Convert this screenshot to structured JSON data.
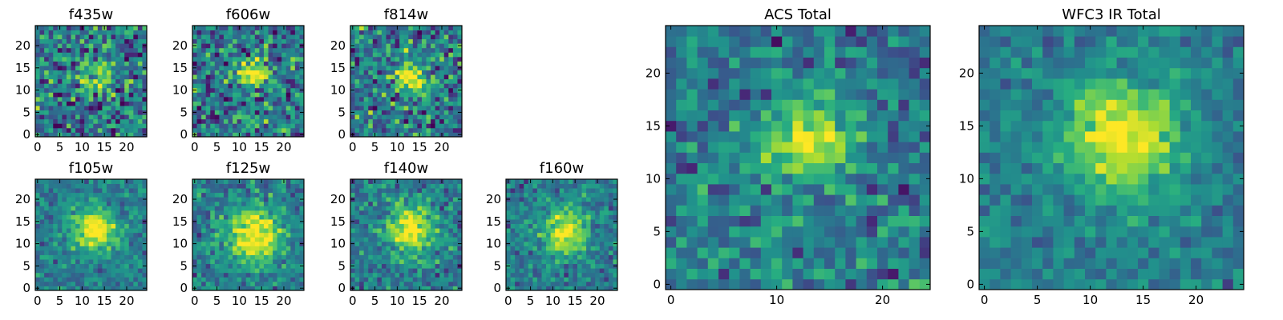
{
  "chart_data": [
    {
      "type": "heatmap",
      "title": "f435w",
      "x_ticks": [
        0,
        5,
        10,
        15,
        20
      ],
      "y_ticks": [
        0,
        5,
        10,
        15,
        20
      ],
      "xlim": [
        -0.5,
        24.5
      ],
      "ylim": [
        -0.5,
        24.5
      ],
      "grid": false,
      "colormap": "viridis",
      "source_centroid": [
        13,
        13
      ],
      "source_peak": 0.7,
      "source_width": 2.5,
      "noise_level": 0.75,
      "seed": 435
    },
    {
      "type": "heatmap",
      "title": "f606w",
      "x_ticks": [
        0,
        5,
        10,
        15,
        20
      ],
      "y_ticks": [
        0,
        5,
        10,
        15,
        20
      ],
      "xlim": [
        -0.5,
        24.5
      ],
      "ylim": [
        -0.5,
        24.5
      ],
      "grid": false,
      "colormap": "viridis",
      "source_centroid": [
        13,
        14
      ],
      "source_peak": 0.95,
      "source_width": 2.3,
      "noise_level": 0.7,
      "seed": 606
    },
    {
      "type": "heatmap",
      "title": "f814w",
      "x_ticks": [
        0,
        5,
        10,
        15,
        20
      ],
      "y_ticks": [
        0,
        5,
        10,
        15,
        20
      ],
      "xlim": [
        -0.5,
        24.5
      ],
      "ylim": [
        -0.5,
        24.5
      ],
      "grid": false,
      "colormap": "viridis",
      "source_centroid": [
        13,
        13
      ],
      "source_peak": 0.95,
      "source_width": 2.5,
      "noise_level": 0.7,
      "seed": 814
    },
    {
      "type": "heatmap",
      "title": "f105w",
      "x_ticks": [
        0,
        5,
        10,
        15,
        20
      ],
      "y_ticks": [
        0,
        5,
        10,
        15,
        20
      ],
      "xlim": [
        -0.5,
        24.5
      ],
      "ylim": [
        -0.5,
        24.5
      ],
      "grid": false,
      "colormap": "viridis",
      "source_centroid": [
        13,
        13
      ],
      "source_peak": 1.0,
      "source_width": 3.5,
      "noise_level": 0.35,
      "seed": 105
    },
    {
      "type": "heatmap",
      "title": "f125w",
      "x_ticks": [
        0,
        5,
        10,
        15,
        20
      ],
      "y_ticks": [
        0,
        5,
        10,
        15,
        20
      ],
      "xlim": [
        -0.5,
        24.5
      ],
      "ylim": [
        -0.5,
        24.5
      ],
      "grid": false,
      "colormap": "viridis",
      "source_centroid": [
        13,
        12
      ],
      "source_peak": 1.0,
      "source_width": 4.5,
      "noise_level": 0.45,
      "seed": 125
    },
    {
      "type": "heatmap",
      "title": "f140w",
      "x_ticks": [
        0,
        5,
        10,
        15,
        20
      ],
      "y_ticks": [
        0,
        5,
        10,
        15,
        20
      ],
      "xlim": [
        -0.5,
        24.5
      ],
      "ylim": [
        -0.5,
        24.5
      ],
      "grid": false,
      "colormap": "viridis",
      "source_centroid": [
        13,
        13
      ],
      "source_peak": 1.0,
      "source_width": 3.8,
      "noise_level": 0.45,
      "seed": 140
    },
    {
      "type": "heatmap",
      "title": "f160w",
      "x_ticks": [
        0,
        5,
        10,
        15,
        20
      ],
      "y_ticks": [
        0,
        5,
        10,
        15,
        20
      ],
      "xlim": [
        -0.5,
        24.5
      ],
      "ylim": [
        -0.5,
        24.5
      ],
      "grid": false,
      "colormap": "viridis",
      "source_centroid": [
        13,
        13
      ],
      "source_peak": 1.0,
      "source_width": 3.5,
      "noise_level": 0.4,
      "seed": 160
    },
    {
      "type": "heatmap",
      "title": "ACS Total",
      "x_ticks": [
        0,
        10,
        20
      ],
      "y_ticks": [
        0,
        5,
        10,
        15,
        20
      ],
      "xlim": [
        -0.5,
        24.5
      ],
      "ylim": [
        -0.5,
        24.5
      ],
      "grid": false,
      "colormap": "viridis",
      "source_centroid": [
        13,
        14
      ],
      "source_peak": 1.0,
      "source_width": 2.6,
      "noise_level": 0.5,
      "seed": 7
    },
    {
      "type": "heatmap",
      "title": "WFC3 IR Total",
      "x_ticks": [
        0,
        5,
        10,
        15,
        20
      ],
      "y_ticks": [
        0,
        5,
        10,
        15,
        20
      ],
      "xlim": [
        -0.5,
        24.5
      ],
      "ylim": [
        -0.5,
        24.5
      ],
      "grid": false,
      "colormap": "viridis",
      "source_centroid": [
        13,
        14
      ],
      "source_peak": 1.0,
      "source_width": 3.8,
      "noise_level": 0.3,
      "seed": 33
    }
  ]
}
